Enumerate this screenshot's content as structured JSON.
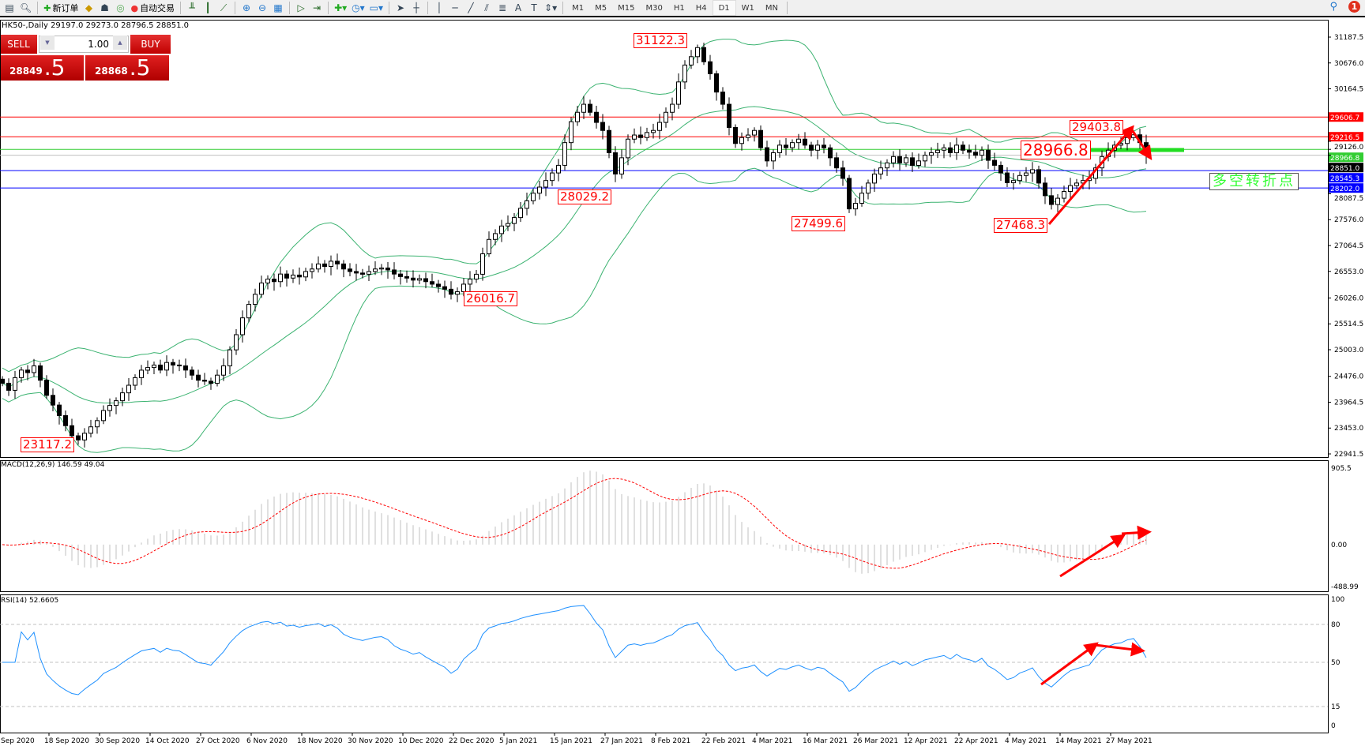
{
  "toolbar": {
    "new_order_label": "新订单",
    "auto_trade_label": "自动交易",
    "timeframes": [
      "M1",
      "M5",
      "M15",
      "M30",
      "H1",
      "H4",
      "D1",
      "W1",
      "MN"
    ],
    "active_timeframe": "D1",
    "notification_count": "1",
    "icons": [
      "new-chart-icon",
      "zoom-chart-icon",
      "new-order-icon",
      "metaeditor-icon",
      "navigator-icon",
      "signals-icon",
      "auto-trade-icon",
      "bar-chart-icon",
      "candle-chart-icon",
      "line-chart-icon",
      "zoom-in-icon",
      "zoom-out-icon",
      "tile-windows-icon",
      "auto-scroll-icon",
      "chart-shift-icon",
      "indicators-icon",
      "periods-icon",
      "templates-icon",
      "cursor-icon",
      "crosshair-icon",
      "vertical-line-icon",
      "horizontal-line-icon",
      "trendline-icon",
      "equidistant-channel-icon",
      "fibonacci-icon",
      "text-icon",
      "text-label-icon",
      "arrows-icon"
    ]
  },
  "chart_info": "HK50-,Daily  29197.0 29273.0 28796.5 28851.0",
  "one_click": {
    "sell_label": "SELL",
    "buy_label": "BUY",
    "lot": "1.00",
    "sell_price_main": "28849",
    "sell_price_big": ".5",
    "buy_price_main": "28868",
    "buy_price_big": ".5"
  },
  "chart_data": [
    {
      "type": "candlestick",
      "symbol": "HK50-",
      "timeframe": "Daily",
      "ylim": [
        22941.5,
        31187.5
      ],
      "y_ticks": [
        31187.5,
        30676.0,
        30164.5,
        29126.0,
        28087.5,
        27576.0,
        27064.5,
        26553.0,
        26026.0,
        25514.5,
        25003.0,
        24476.0,
        23964.5,
        23453.0,
        22941.5
      ],
      "x_ticks": [
        "Sep 2020",
        "18 Sep 2020",
        "30 Sep 2020",
        "14 Oct 2020",
        "27 Oct 2020",
        "6 Nov 2020",
        "18 Nov 2020",
        "30 Nov 2020",
        "10 Dec 2020",
        "22 Dec 2020",
        "5 Jan 2021",
        "15 Jan 2021",
        "27 Jan 2021",
        "8 Feb 2021",
        "22 Feb 2021",
        "4 Mar 2021",
        "16 Mar 2021",
        "26 Mar 2021",
        "12 Apr 2021",
        "22 Apr 2021",
        "4 May 2021",
        "14 May 2021",
        "27 May 2021"
      ],
      "closes": [
        24340,
        24200,
        24450,
        24600,
        24550,
        24684,
        24400,
        24100,
        23908,
        23700,
        23500,
        23300,
        23218,
        23350,
        23477,
        23600,
        23800,
        23900,
        23994,
        24150,
        24300,
        24450,
        24598,
        24650,
        24700,
        24600,
        24750,
        24700,
        24684,
        24600,
        24500,
        24400,
        24380,
        24338,
        24500,
        24684,
        25000,
        25300,
        25633,
        25900,
        26100,
        26323,
        26400,
        26350,
        26500,
        26420,
        26480,
        26443,
        26550,
        26600,
        26700,
        26650,
        26754,
        26700,
        26600,
        26550,
        26520,
        26496,
        26550,
        26600,
        26620,
        26581,
        26500,
        26450,
        26420,
        26380,
        26409,
        26350,
        26300,
        26250,
        26200,
        26100,
        26150,
        26300,
        26400,
        26496,
        26900,
        27185,
        27300,
        27450,
        27500,
        27617,
        27800,
        27950,
        28100,
        28220,
        28350,
        28500,
        28651,
        29100,
        29514,
        29700,
        29859,
        29700,
        29500,
        29341,
        28900,
        28479,
        28800,
        29169,
        29250,
        29200,
        29300,
        29341,
        29500,
        29700,
        29859,
        30300,
        30635,
        30800,
        30980,
        30700,
        30463,
        30100,
        29859,
        29400,
        29083,
        29200,
        29250,
        29341,
        29000,
        28738,
        28900,
        29050,
        29000,
        29100,
        29169,
        29050,
        28950,
        29050,
        28997,
        28800,
        28600,
        28393,
        27789,
        27900,
        28100,
        28300,
        28479,
        28600,
        28700,
        28824,
        28700,
        28800,
        28650,
        28738,
        28850,
        28900,
        28950,
        28997,
        28900,
        29050,
        28950,
        28910,
        28850,
        28950,
        28750,
        28651,
        28500,
        28307,
        28350,
        28450,
        28500,
        28565,
        28300,
        28050,
        27876,
        28000,
        28134,
        28250,
        28300,
        28350,
        28393,
        28600,
        28824,
        28950,
        29050,
        29083,
        29200,
        29255,
        29100,
        28851
      ],
      "indicators": [
        "Bollinger Bands"
      ],
      "horizontal_lines": [
        {
          "price": "29606.7",
          "color": "#ff0000"
        },
        {
          "price": "29216.5",
          "color": "#ff0000"
        },
        {
          "price": "28966.8",
          "color": "#32cd32"
        },
        {
          "price": "28851.0",
          "color": "#000000",
          "line_color": "#c0c0c0"
        },
        {
          "price": "28545.3",
          "color": "#0000ff"
        },
        {
          "price": "28202.0",
          "color": "#0000ff"
        }
      ],
      "annotations": [
        "31122.3",
        "28029.2",
        "26016.7",
        "23117.2",
        "27499.6",
        "27468.3",
        "29403.8",
        "28966.8"
      ],
      "pivot_text": "多空转折点"
    },
    {
      "type": "bar",
      "title": "MACD(12,26,9) 146.59 49.04",
      "ylim": [
        -488.99,
        905.5
      ],
      "y_ticks": [
        "905.5",
        "0.00",
        "-488.99"
      ],
      "histogram_color": "#c0c0c0",
      "signal_color": "#ff0000"
    },
    {
      "type": "line",
      "title": "RSI(14) 52.6605",
      "ylim": [
        0,
        100
      ],
      "y_ticks": [
        "100",
        "80",
        "50",
        "15",
        "0"
      ],
      "levels": [
        80,
        50,
        15
      ],
      "color": "#1e90ff"
    }
  ]
}
